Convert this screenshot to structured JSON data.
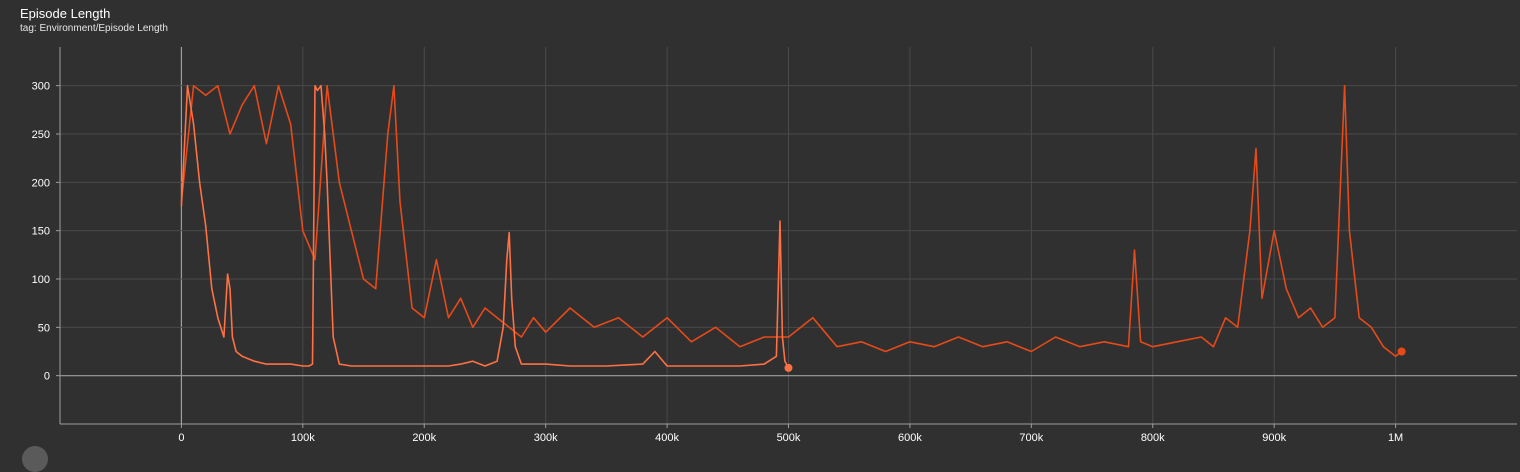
{
  "card": {
    "title": "Episode Length",
    "tag": "tag: Environment/Episode Length"
  },
  "colors": {
    "background": "#303030",
    "grid": "#4a4a4a",
    "axis": "#9e9e9e",
    "run_1": "#ff7043",
    "run_2": "#e64a19"
  },
  "chart_data": {
    "type": "line",
    "title": "Episode Length",
    "xlabel": "",
    "ylabel": "",
    "xlim": [
      -100000,
      1100000
    ],
    "ylim": [
      -50,
      340
    ],
    "x_ticks": [
      0,
      100000,
      200000,
      300000,
      400000,
      500000,
      600000,
      700000,
      800000,
      900000,
      1000000
    ],
    "x_tick_labels": [
      "0",
      "100k",
      "200k",
      "300k",
      "400k",
      "500k",
      "600k",
      "700k",
      "800k",
      "900k",
      "1M"
    ],
    "y_ticks": [
      0,
      50,
      100,
      150,
      200,
      250,
      300
    ],
    "y_tick_labels": [
      "0",
      "50",
      "100",
      "150",
      "200",
      "250",
      "300"
    ],
    "grid": true,
    "legend": "none",
    "series": [
      {
        "color": "#ff7043",
        "x": [
          0,
          5000,
          10000,
          15000,
          20000,
          25000,
          30000,
          35000,
          38000,
          40000,
          42000,
          45000,
          50000,
          60000,
          70000,
          80000,
          90000,
          100000,
          105000,
          108000,
          110000,
          112000,
          115000,
          118000,
          120000,
          125000,
          130000,
          140000,
          160000,
          180000,
          200000,
          220000,
          230000,
          240000,
          250000,
          260000,
          265000,
          268000,
          270000,
          272000,
          275000,
          280000,
          300000,
          320000,
          350000,
          380000,
          390000,
          400000,
          430000,
          460000,
          480000,
          490000,
          493000,
          495000,
          497000,
          500000
        ],
        "y": [
          175,
          300,
          260,
          200,
          155,
          90,
          60,
          40,
          105,
          90,
          40,
          25,
          20,
          15,
          12,
          12,
          12,
          10,
          10,
          12,
          300,
          295,
          300,
          250,
          200,
          40,
          12,
          10,
          10,
          10,
          10,
          10,
          12,
          15,
          10,
          15,
          50,
          120,
          148,
          80,
          30,
          12,
          12,
          10,
          10,
          12,
          25,
          10,
          10,
          10,
          12,
          20,
          160,
          40,
          15,
          8
        ]
      },
      {
        "color": "#e64a19",
        "x": [
          0,
          10000,
          20000,
          30000,
          40000,
          50000,
          60000,
          70000,
          80000,
          90000,
          100000,
          110000,
          120000,
          130000,
          140000,
          150000,
          160000,
          170000,
          175000,
          180000,
          190000,
          200000,
          210000,
          220000,
          230000,
          240000,
          250000,
          260000,
          270000,
          280000,
          290000,
          300000,
          320000,
          340000,
          360000,
          380000,
          400000,
          420000,
          440000,
          460000,
          480000,
          500000,
          520000,
          540000,
          560000,
          580000,
          600000,
          620000,
          640000,
          660000,
          680000,
          700000,
          720000,
          740000,
          760000,
          780000,
          785000,
          790000,
          800000,
          820000,
          840000,
          850000,
          860000,
          870000,
          880000,
          885000,
          890000,
          900000,
          910000,
          920000,
          930000,
          940000,
          950000,
          958000,
          962000,
          970000,
          980000,
          990000,
          1000000,
          1005000
        ],
        "y": [
          180,
          300,
          290,
          300,
          250,
          280,
          300,
          240,
          300,
          260,
          150,
          120,
          300,
          200,
          150,
          100,
          90,
          250,
          300,
          180,
          70,
          60,
          120,
          60,
          80,
          50,
          70,
          60,
          50,
          40,
          60,
          45,
          70,
          50,
          60,
          40,
          60,
          35,
          50,
          30,
          40,
          40,
          60,
          30,
          35,
          25,
          35,
          30,
          40,
          30,
          35,
          25,
          40,
          30,
          35,
          30,
          130,
          35,
          30,
          35,
          40,
          30,
          60,
          50,
          150,
          235,
          80,
          150,
          90,
          60,
          70,
          50,
          60,
          300,
          150,
          60,
          50,
          30,
          20,
          25
        ]
      }
    ]
  }
}
